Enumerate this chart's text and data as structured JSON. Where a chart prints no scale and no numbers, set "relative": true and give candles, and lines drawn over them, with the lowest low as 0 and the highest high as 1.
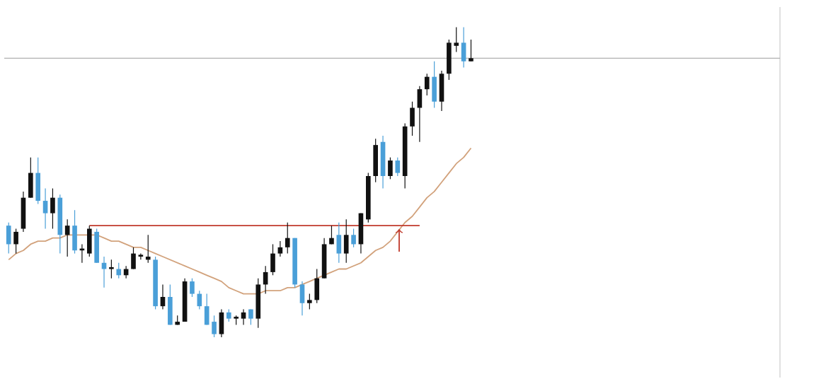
{
  "chart_data": {
    "type": "candlestick",
    "relative": true,
    "categories": [
      null,
      null,
      null,
      null,
      null,
      null,
      null,
      null,
      null,
      null,
      null,
      null,
      null,
      null,
      null,
      null,
      null,
      null,
      null,
      null,
      null,
      null,
      null,
      null,
      null,
      null,
      null,
      null,
      null,
      null,
      null,
      null,
      null,
      null,
      null,
      null,
      null,
      null,
      null,
      null,
      null,
      null,
      null,
      null,
      null,
      null,
      null,
      null,
      null,
      null,
      null,
      null,
      null,
      null,
      null,
      null,
      null,
      null,
      null,
      null,
      null,
      null,
      null,
      null
    ],
    "ohlc": [
      [
        0.36,
        0.37,
        0.27,
        0.3
      ],
      [
        0.3,
        0.35,
        0.27,
        0.34
      ],
      [
        0.35,
        0.47,
        0.34,
        0.45
      ],
      [
        0.45,
        0.58,
        0.45,
        0.53
      ],
      [
        0.53,
        0.58,
        0.43,
        0.44
      ],
      [
        0.44,
        0.48,
        0.35,
        0.4
      ],
      [
        0.4,
        0.48,
        0.35,
        0.45
      ],
      [
        0.45,
        0.46,
        0.27,
        0.33
      ],
      [
        0.33,
        0.38,
        0.26,
        0.36
      ],
      [
        0.36,
        0.41,
        0.27,
        0.28
      ],
      [
        0.28,
        0.3,
        0.24,
        0.28
      ],
      [
        0.27,
        0.36,
        0.26,
        0.35
      ],
      [
        0.34,
        0.35,
        0.24,
        0.24
      ],
      [
        0.24,
        0.26,
        0.16,
        0.22
      ],
      [
        0.22,
        0.25,
        0.19,
        0.22
      ],
      [
        0.22,
        0.24,
        0.19,
        0.2
      ],
      [
        0.2,
        0.23,
        0.19,
        0.22
      ],
      [
        0.22,
        0.29,
        0.22,
        0.27
      ],
      [
        0.26,
        0.27,
        0.25,
        0.26
      ],
      [
        0.25,
        0.33,
        0.24,
        0.26
      ],
      [
        0.25,
        0.26,
        0.09,
        0.1
      ],
      [
        0.1,
        0.17,
        0.09,
        0.13
      ],
      [
        0.13,
        0.17,
        0.04,
        0.04
      ],
      [
        0.04,
        0.07,
        0.04,
        0.05
      ],
      [
        0.05,
        0.19,
        0.05,
        0.18
      ],
      [
        0.18,
        0.19,
        0.13,
        0.14
      ],
      [
        0.14,
        0.15,
        0.09,
        0.1
      ],
      [
        0.1,
        0.14,
        0.04,
        0.04
      ],
      [
        0.05,
        0.07,
        0,
        0.01
      ],
      [
        0.01,
        0.09,
        0,
        0.08
      ],
      [
        0.08,
        0.09,
        0.05,
        0.06
      ],
      [
        0.06,
        0.07,
        0.04,
        0.06
      ],
      [
        0.06,
        0.09,
        0.04,
        0.08
      ],
      [
        0.09,
        0.09,
        0.04,
        0.06
      ],
      [
        0.06,
        0.19,
        0.03,
        0.17
      ],
      [
        0.17,
        0.23,
        0.14,
        0.21
      ],
      [
        0.21,
        0.3,
        0.2,
        0.27
      ],
      [
        0.27,
        0.31,
        0.26,
        0.29
      ],
      [
        0.29,
        0.37,
        0.27,
        0.32
      ],
      [
        0.32,
        0.32,
        0.16,
        0.17
      ],
      [
        0.17,
        0.18,
        0.07,
        0.11
      ],
      [
        0.11,
        0.14,
        0.09,
        0.12
      ],
      [
        0.12,
        0.22,
        0.11,
        0.19
      ],
      [
        0.19,
        0.32,
        0.19,
        0.3
      ],
      [
        0.3,
        0.36,
        0.3,
        0.32
      ],
      [
        0.33,
        0.37,
        0.24,
        0.27
      ],
      [
        0.27,
        0.38,
        0.24,
        0.33
      ],
      [
        0.33,
        0.35,
        0.29,
        0.3
      ],
      [
        0.3,
        0.4,
        0.27,
        0.4
      ],
      [
        0.38,
        0.53,
        0.37,
        0.52
      ],
      [
        0.52,
        0.64,
        0.5,
        0.62
      ],
      [
        0.63,
        0.65,
        0.48,
        0.52
      ],
      [
        0.52,
        0.58,
        0.51,
        0.57
      ],
      [
        0.57,
        0.58,
        0.52,
        0.53
      ],
      [
        0.52,
        0.69,
        0.48,
        0.68
      ],
      [
        0.68,
        0.76,
        0.65,
        0.74
      ],
      [
        0.74,
        0.81,
        0.63,
        0.8
      ],
      [
        0.8,
        0.85,
        0.78,
        0.84
      ],
      [
        0.84,
        0.89,
        0.74,
        0.76
      ],
      [
        0.76,
        0.86,
        0.73,
        0.85
      ],
      [
        0.85,
        0.96,
        0.83,
        0.95
      ],
      [
        0.94,
        1,
        0.92,
        0.95
      ],
      [
        0.95,
        1,
        0.87,
        0.89
      ],
      [
        0.89,
        0.96,
        0.89,
        0.9
      ]
    ],
    "colors": [
      "#4a9fd8",
      "#111111",
      "#111111",
      "#111111",
      "#4a9fd8",
      "#4a9fd8",
      "#111111",
      "#4a9fd8",
      "#111111",
      "#4a9fd8",
      "#111111",
      "#111111",
      "#4a9fd8",
      "#4a9fd8",
      "#111111",
      "#4a9fd8",
      "#111111",
      "#111111",
      "#111111",
      "#111111",
      "#4a9fd8",
      "#111111",
      "#4a9fd8",
      "#111111",
      "#111111",
      "#4a9fd8",
      "#4a9fd8",
      "#4a9fd8",
      "#4a9fd8",
      "#111111",
      "#4a9fd8",
      "#111111",
      "#111111",
      "#4a9fd8",
      "#111111",
      "#111111",
      "#111111",
      "#111111",
      "#111111",
      "#4a9fd8",
      "#4a9fd8",
      "#111111",
      "#111111",
      "#111111",
      "#111111",
      "#4a9fd8",
      "#111111",
      "#4a9fd8",
      "#111111",
      "#111111",
      "#111111",
      "#4a9fd8",
      "#111111",
      "#4a9fd8",
      "#111111",
      "#111111",
      "#111111",
      "#111111",
      "#4a9fd8",
      "#111111",
      "#111111",
      "#111111",
      "#4a9fd8",
      "#111111"
    ],
    "series": [
      {
        "type": "line",
        "color": "#d2a27c",
        "values": [
          0.25,
          0.27,
          0.28,
          0.3,
          0.31,
          0.31,
          0.32,
          0.32,
          0.33,
          0.33,
          0.33,
          0.33,
          0.33,
          0.32,
          0.31,
          0.31,
          0.3,
          0.29,
          0.29,
          0.28,
          0.27,
          0.26,
          0.25,
          0.24,
          0.23,
          0.22,
          0.21,
          0.2,
          0.19,
          0.18,
          0.16,
          0.15,
          0.14,
          0.14,
          0.14,
          0.15,
          0.15,
          0.15,
          0.16,
          0.16,
          0.17,
          0.18,
          0.19,
          0.2,
          0.21,
          0.22,
          0.22,
          0.23,
          0.24,
          0.26,
          0.28,
          0.29,
          0.31,
          0.34,
          0.37,
          0.39,
          0.42,
          0.45,
          0.47,
          0.5,
          0.53,
          0.56,
          0.58,
          0.61
        ]
      },
      {
        "type": "line",
        "color": "#c0392b",
        "values": [
          null,
          null,
          null,
          null,
          null,
          null,
          null,
          null,
          null,
          null,
          null,
          0.36,
          0.36,
          0.36,
          0.36,
          0.36,
          0.36,
          0.36,
          0.36,
          0.36,
          0.36,
          0.36,
          0.36,
          0.36,
          0.36,
          0.36,
          0.36,
          0.36,
          0.36,
          0.36,
          0.36,
          0.36,
          0.36,
          0.36,
          0.36,
          0.36,
          0.36,
          0.36,
          0.36,
          0.36,
          0.36,
          0.36,
          0.36,
          0.36,
          0.36,
          0.36,
          0.36,
          0.36,
          0.36,
          0.36,
          0.36,
          0.36,
          0.36,
          0.36,
          0.36,
          0.36,
          0.36,
          null,
          null,
          null,
          null,
          null,
          null,
          null
        ]
      }
    ],
    "ref_lines": [
      {
        "axis": "y",
        "value": 0.9,
        "color": "#b0b0b0"
      }
    ]
  }
}
